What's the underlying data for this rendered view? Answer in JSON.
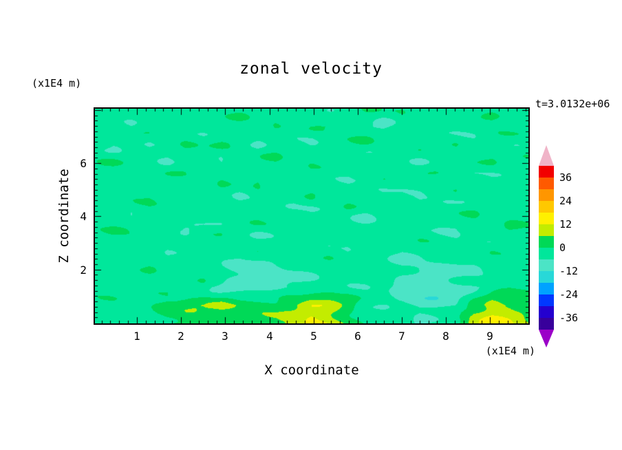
{
  "title": "zonal velocity",
  "time_label": "t=3.0132e+06",
  "x_axis": {
    "label": "X coordinate",
    "units": "(x1E4 m)",
    "ticks": [
      1,
      2,
      3,
      4,
      5,
      6,
      7,
      8,
      9
    ],
    "minor_step": 0.2
  },
  "z_axis": {
    "label": "Z coordinate",
    "units": "(x1E4 m)",
    "ticks": [
      2,
      4,
      6
    ],
    "minor_step": 0.2
  },
  "colorbar": {
    "tick_values": [
      36,
      24,
      12,
      0,
      -12,
      -24,
      -36
    ],
    "level_max": 42,
    "level_min": -42,
    "step": 6,
    "top_arrow_color": "#f0b4c8",
    "bottom_arrow_color": "#9b00c8",
    "band_colors_top_to_bottom": [
      "#f20000",
      "#ff5a00",
      "#ff9600",
      "#ffc800",
      "#fff000",
      "#c3ec00",
      "#00d957",
      "#00e79b",
      "#4be4c6",
      "#28d8d8",
      "#00a2ff",
      "#0038ff",
      "#2400cf",
      "#38009b"
    ]
  },
  "chart_data": {
    "type": "heatmap",
    "title": "zonal velocity",
    "xlabel": "X coordinate (x1E4 m)",
    "ylabel": "Z coordinate (x1E4 m)",
    "time": "t=3.0132e+06",
    "x_range": [
      0.05,
      9.85
    ],
    "z_range": [
      0,
      8.05
    ],
    "contour_interval": 6,
    "value_levels": [
      -42,
      -36,
      -30,
      -24,
      -18,
      -12,
      -6,
      0,
      6,
      12,
      18,
      24,
      30,
      36,
      42
    ],
    "description": "Filled contour field of zonal velocity. Values lie mostly in the -6..0 band (spring green) with streaky small anomalies of the adjacent bands; stronger minima (-12 band, turquoise) near z=1-2 around x=3-5.5 and x=7-9.5; maxima (+12..18, yellow) in streaks near the bottom around x=3-6 and x=8.5-9.8.",
    "grid_note": "Estimated values sampled on a uniform 25x13 grid spanning x_range (left to right) and z_range (first row = top of plot).",
    "grid_values_top_to_bottom": [
      [
        -2,
        -3,
        -1,
        -2,
        -4,
        -2,
        -3,
        -5,
        -2,
        -1,
        -2,
        -3,
        -2,
        -4,
        -2,
        -1,
        -3,
        -2,
        -5,
        -2,
        -3,
        -2,
        -1,
        -4,
        -2
      ],
      [
        -4,
        -2,
        -5,
        -1,
        -2,
        -6,
        -3,
        -2,
        -1,
        -4,
        -2,
        -5,
        -2,
        -1,
        -3,
        -4,
        -6,
        -2,
        -1,
        -3,
        -5,
        -2,
        -1,
        -2,
        -3
      ],
      [
        -2,
        -5,
        -2,
        -6,
        -3,
        -1,
        -4,
        -1,
        -2,
        -5,
        -3,
        -2,
        -6,
        -4,
        -2,
        -1,
        -3,
        -5,
        -2,
        -4,
        -1,
        -5,
        -3,
        -2,
        -2
      ],
      [
        -3,
        -1,
        -4,
        -2,
        -5,
        -2,
        -1,
        -6,
        -2,
        -3,
        -1,
        -4,
        -2,
        -5,
        -3,
        -6,
        -2,
        -3,
        -4,
        -1,
        -5,
        -2,
        -1,
        -4,
        -3
      ],
      [
        -2,
        -4,
        -1,
        -5,
        -2,
        -3,
        -6,
        -2,
        -4,
        -1,
        -5,
        -2,
        -3,
        -1,
        -6,
        -4,
        -2,
        -5,
        -1,
        -3,
        -2,
        -4,
        -5,
        -2,
        -1
      ],
      [
        -5,
        -2,
        -3,
        -1,
        -6,
        -4,
        -2,
        -1,
        -5,
        -3,
        -2,
        -6,
        -2,
        -4,
        -1,
        -2,
        -5,
        -2,
        -6,
        -4,
        -2,
        -3,
        -1,
        -5,
        -4
      ],
      [
        -2,
        -3,
        -5,
        -2,
        -1,
        -2,
        -4,
        -6,
        -2,
        -1,
        -4,
        -2,
        -5,
        -2,
        -3,
        -6,
        -1,
        -4,
        -2,
        -5,
        -3,
        -1,
        -4,
        -2,
        -3
      ],
      [
        -4,
        -1,
        -2,
        -5,
        -3,
        -6,
        -2,
        -1,
        -3,
        -5,
        -2,
        -1,
        -4,
        -6,
        -2,
        -3,
        -5,
        -1,
        -2,
        -4,
        -6,
        -2,
        -3,
        -1,
        -2
      ],
      [
        -2,
        -5,
        -3,
        -1,
        -4,
        -2,
        -5,
        -3,
        -6,
        -2,
        -4,
        -5,
        -1,
        -2,
        -4,
        -1,
        -2,
        -6,
        -4,
        -2,
        -1,
        -5,
        -2,
        -4,
        -3
      ],
      [
        -3,
        -2,
        -4,
        -2,
        -5,
        -3,
        -2,
        -4,
        -7,
        -8,
        -7,
        -5,
        -3,
        -2,
        -4,
        -2,
        -3,
        -6,
        -8,
        -8,
        -7,
        -5,
        -4,
        -3,
        -2
      ],
      [
        -2,
        -4,
        -2,
        -3,
        -2,
        -5,
        -3,
        -8,
        -10,
        -10,
        -9,
        -7,
        -6,
        -4,
        -3,
        -4,
        -2,
        -8,
        -10,
        -11,
        -9,
        -7,
        -4,
        -2,
        -3
      ],
      [
        -3,
        -2,
        -4,
        -2,
        2,
        3,
        4,
        8,
        5,
        6,
        4,
        7,
        12,
        9,
        3,
        -5,
        -6,
        -6,
        -9,
        -8,
        -6,
        4,
        9,
        7,
        3
      ],
      [
        -2,
        -3,
        -2,
        -1,
        2,
        4,
        5,
        2,
        3,
        2,
        4,
        8,
        13,
        10,
        4,
        -1,
        -2,
        -4,
        -5,
        -4,
        -2,
        9,
        14,
        11,
        6
      ]
    ]
  }
}
